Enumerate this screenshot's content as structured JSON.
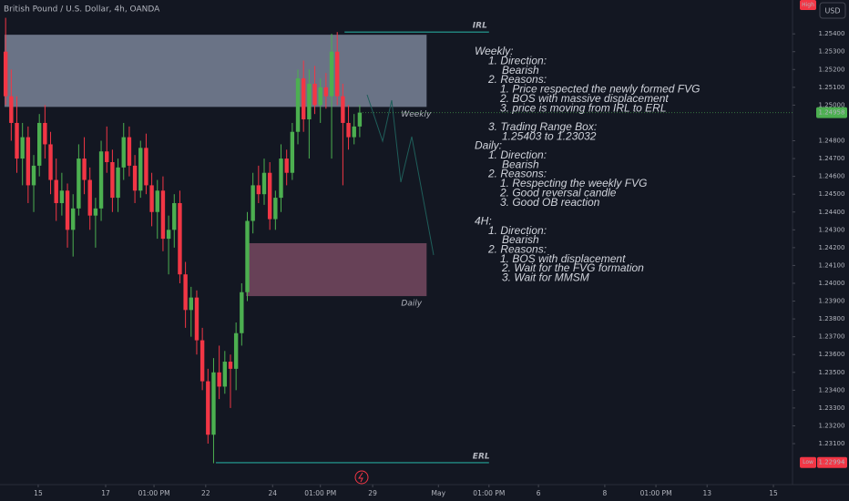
{
  "chart_data": {
    "type": "candlestick",
    "title": "British Pound / U.S. Dollar, 4h, OANDA",
    "currency": "USD",
    "high_badge": "High",
    "low_badge": "Low",
    "low_price": {
      "value": 1.22994,
      "label": "1.22994"
    },
    "last_price": {
      "value": 1.24958,
      "label": "1.24958"
    },
    "up_color": "#4caf50",
    "down_color": "#f23645",
    "ylim": [
      1.2287,
      1.2559
    ],
    "xlim": [
      -1,
      140
    ],
    "yticks": [
      {
        "value": 1.231,
        "label": "1.23100"
      },
      {
        "value": 1.232,
        "label": "1.23200"
      },
      {
        "value": 1.233,
        "label": "1.23300"
      },
      {
        "value": 1.234,
        "label": "1.23400"
      },
      {
        "value": 1.235,
        "label": "1.23500"
      },
      {
        "value": 1.236,
        "label": "1.23600"
      },
      {
        "value": 1.237,
        "label": "1.23700"
      },
      {
        "value": 1.238,
        "label": "1.23800"
      },
      {
        "value": 1.239,
        "label": "1.23900"
      },
      {
        "value": 1.24,
        "label": "1.24000"
      },
      {
        "value": 1.241,
        "label": "1.24100"
      },
      {
        "value": 1.242,
        "label": "1.24200"
      },
      {
        "value": 1.243,
        "label": "1.24300"
      },
      {
        "value": 1.244,
        "label": "1.24400"
      },
      {
        "value": 1.245,
        "label": "1.24500"
      },
      {
        "value": 1.246,
        "label": "1.24600"
      },
      {
        "value": 1.247,
        "label": "1.24700"
      },
      {
        "value": 1.248,
        "label": "1.24800"
      },
      {
        "value": 1.25,
        "label": "1.25000"
      },
      {
        "value": 1.251,
        "label": "1.25100"
      },
      {
        "value": 1.252,
        "label": "1.25200"
      },
      {
        "value": 1.253,
        "label": "1.25300"
      },
      {
        "value": 1.254,
        "label": "1.25400"
      }
    ],
    "xticks": [
      {
        "value": 5.8,
        "label": "15"
      },
      {
        "value": 17.8,
        "label": "17"
      },
      {
        "value": 26.4,
        "label": "01:00 PM"
      },
      {
        "value": 35.6,
        "label": "22"
      },
      {
        "value": 47.5,
        "label": "24"
      },
      {
        "value": 56.0,
        "label": "01:00 PM"
      },
      {
        "value": 65.3,
        "label": "29"
      },
      {
        "value": 77.0,
        "label": "May"
      },
      {
        "value": 86.0,
        "label": "01:00 PM"
      },
      {
        "value": 94.8,
        "label": "6"
      },
      {
        "value": 106.6,
        "label": "8"
      },
      {
        "value": 115.7,
        "label": "01:00 PM"
      },
      {
        "value": 124.8,
        "label": "13"
      },
      {
        "value": 136.6,
        "label": "15"
      }
    ],
    "ohlc": [
      [
        1.253,
        1.2549,
        1.25,
        1.2505
      ],
      [
        1.2505,
        1.252,
        1.248,
        1.249
      ],
      [
        1.249,
        1.2505,
        1.2462,
        1.247
      ],
      [
        1.247,
        1.249,
        1.2455,
        1.2482
      ],
      [
        1.2482,
        1.2488,
        1.2445,
        1.2455
      ],
      [
        1.2455,
        1.2472,
        1.244,
        1.2466
      ],
      [
        1.2466,
        1.2495,
        1.246,
        1.249
      ],
      [
        1.249,
        1.25,
        1.247,
        1.2478
      ],
      [
        1.2478,
        1.2485,
        1.245,
        1.2458
      ],
      [
        1.2458,
        1.247,
        1.2435,
        1.2445
      ],
      [
        1.2445,
        1.2462,
        1.2438,
        1.2452
      ],
      [
        1.2452,
        1.2456,
        1.242,
        1.243
      ],
      [
        1.243,
        1.245,
        1.2415,
        1.2442
      ],
      [
        1.2442,
        1.2478,
        1.2438,
        1.247
      ],
      [
        1.247,
        1.2482,
        1.245,
        1.2458
      ],
      [
        1.2458,
        1.2465,
        1.243,
        1.2438
      ],
      [
        1.2438,
        1.2448,
        1.242,
        1.2442
      ],
      [
        1.2442,
        1.248,
        1.2435,
        1.2474
      ],
      [
        1.2474,
        1.2488,
        1.2462,
        1.2468
      ],
      [
        1.2468,
        1.2475,
        1.244,
        1.2448
      ],
      [
        1.2448,
        1.247,
        1.244,
        1.2465
      ],
      [
        1.2465,
        1.249,
        1.2458,
        1.2482
      ],
      [
        1.2482,
        1.2488,
        1.246,
        1.2466
      ],
      [
        1.2466,
        1.2472,
        1.2445,
        1.2452
      ],
      [
        1.2452,
        1.248,
        1.2448,
        1.2476
      ],
      [
        1.2476,
        1.2484,
        1.245,
        1.2455
      ],
      [
        1.2455,
        1.2462,
        1.2432,
        1.244
      ],
      [
        1.244,
        1.2458,
        1.2425,
        1.2452
      ],
      [
        1.2452,
        1.246,
        1.2418,
        1.2425
      ],
      [
        1.2425,
        1.2438,
        1.2405,
        1.243
      ],
      [
        1.243,
        1.245,
        1.242,
        1.2445
      ],
      [
        1.2445,
        1.2452,
        1.24,
        1.2405
      ],
      [
        1.2405,
        1.2412,
        1.2375,
        1.2385
      ],
      [
        1.2385,
        1.2398,
        1.237,
        1.2392
      ],
      [
        1.2392,
        1.2396,
        1.236,
        1.2368
      ],
      [
        1.2368,
        1.2375,
        1.234,
        1.2345
      ],
      [
        1.2345,
        1.2352,
        1.231,
        1.2315
      ],
      [
        1.2315,
        1.2358,
        1.2299,
        1.235
      ],
      [
        1.235,
        1.2365,
        1.2335,
        1.2342
      ],
      [
        1.2342,
        1.2362,
        1.2338,
        1.2356
      ],
      [
        1.2356,
        1.236,
        1.233,
        1.2352
      ],
      [
        1.2352,
        1.2378,
        1.234,
        1.2372
      ],
      [
        1.2372,
        1.24,
        1.2365,
        1.2395
      ],
      [
        1.2395,
        1.244,
        1.239,
        1.2435
      ],
      [
        1.2435,
        1.2462,
        1.2428,
        1.2455
      ],
      [
        1.2455,
        1.2466,
        1.2445,
        1.245
      ],
      [
        1.245,
        1.247,
        1.2444,
        1.2462
      ],
      [
        1.2462,
        1.2468,
        1.243,
        1.2436
      ],
      [
        1.2436,
        1.2452,
        1.243,
        1.2448
      ],
      [
        1.2448,
        1.2478,
        1.244,
        1.247
      ],
      [
        1.247,
        1.2475,
        1.2455,
        1.2462
      ],
      [
        1.2462,
        1.249,
        1.2458,
        1.2485
      ],
      [
        1.2485,
        1.252,
        1.2478,
        1.2515
      ],
      [
        1.2515,
        1.2525,
        1.2485,
        1.2492
      ],
      [
        1.2492,
        1.252,
        1.247,
        1.2512
      ],
      [
        1.2512,
        1.2522,
        1.2495,
        1.25
      ],
      [
        1.25,
        1.2515,
        1.249,
        1.251
      ],
      [
        1.251,
        1.2518,
        1.2498,
        1.2505
      ],
      [
        1.2505,
        1.254,
        1.247,
        1.253
      ],
      [
        1.253,
        1.2541,
        1.25,
        1.2505
      ],
      [
        1.2505,
        1.2512,
        1.2455,
        1.249
      ],
      [
        1.249,
        1.25,
        1.2475,
        1.2482
      ],
      [
        1.2482,
        1.2495,
        1.2478,
        1.2488
      ],
      [
        1.2488,
        1.25,
        1.2482,
        1.24958
      ]
    ],
    "zones": [
      {
        "name": "Weekly",
        "x": [
          -0.2,
          74.9
        ],
        "price": [
          1.2499,
          1.25395
        ],
        "color": "#b2bfd9"
      },
      {
        "name": "Daily",
        "x": [
          42.8,
          74.9
        ],
        "price": [
          1.23928,
          1.24225
        ],
        "color": "#a05d7c"
      }
    ],
    "levels": [
      {
        "name": "IRL",
        "x": [
          60.3,
          86.0
        ],
        "price": 1.2541,
        "color": "#26a69a"
      },
      {
        "name": "ERL",
        "x": [
          37.4,
          86.0
        ],
        "price": 1.22993,
        "color": "#26a69a"
      }
    ],
    "notes": [
      "Weekly:",
      "1. Direction:",
      "Bearish",
      "2. Reasons:",
      "1. Price respected the newly formed FVG",
      "2. BOS with massive displacement",
      "3. price is moving from IRL to ERL",
      "3. Trading Range Box:",
      "1.25403 to 1.23032",
      "Daily:",
      "1. Direction:",
      "Bearish",
      "2. Reasons:",
      "1. Respecting the weekly FVG",
      "2. Good reversal candle",
      "3. Good OB reaction",
      "4H:",
      "1. Direction:",
      "Bearish",
      "2. Reasons:",
      "1. BOS with displacement",
      "2. Wait for the FVG formation",
      "3. Wait for MMSM"
    ]
  }
}
